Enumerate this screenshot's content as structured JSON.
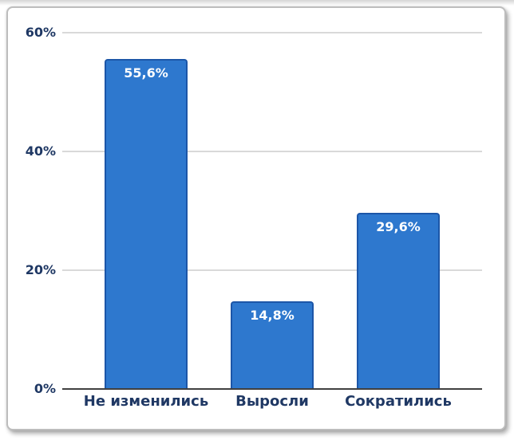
{
  "chart_data": {
    "type": "bar",
    "title": "",
    "xlabel": "",
    "ylabel": "",
    "legend": "none",
    "grid": "horizontal",
    "categories": [
      "Не изменились",
      "Выросли",
      "Сократились"
    ],
    "values": [
      55.6,
      14.8,
      29.6
    ],
    "value_labels": [
      "55,6%",
      "14,8%",
      "29,6%"
    ],
    "y_axis": {
      "tick_labels": [
        "0%",
        "20%",
        "40%",
        "60%"
      ],
      "tick_values": [
        0,
        20,
        40,
        60
      ]
    },
    "ylim": [
      0,
      60
    ],
    "colors": {
      "bar_fill": "#2E78CE",
      "bar_border": "#1C56A8",
      "text": "#1F3864",
      "data_label": "#FFFFFF",
      "gridline": "#D9D9D9",
      "axis_line": "#404040"
    }
  }
}
